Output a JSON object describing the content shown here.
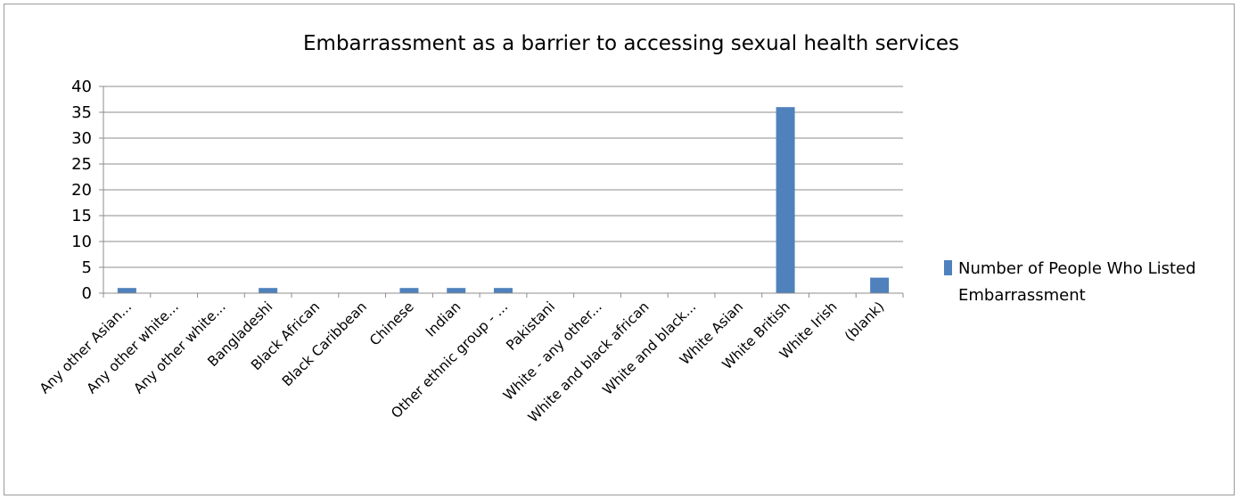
{
  "chart_data": {
    "type": "bar",
    "title": "Embarrassment as a barrier to accessing sexual health services",
    "xlabel": "",
    "ylabel": "",
    "ylim": [
      0,
      40
    ],
    "yticks": [
      0,
      5,
      10,
      15,
      20,
      25,
      30,
      35,
      40
    ],
    "grid": true,
    "legend_position": "right",
    "categories": [
      "Any other Asian...",
      "Any other white...",
      "Any other white...",
      "Bangladeshi",
      "Black African",
      "Black Caribbean",
      "Chinese",
      "Indian",
      "Other ethnic group - ...",
      "Pakistani",
      "White - any other...",
      "White and black african",
      "White and black...",
      "White Asian",
      "White British",
      "White Irish",
      "(blank)"
    ],
    "series": [
      {
        "name": "Number of People Who Listed Embarrassment",
        "legend_lines": [
          "Number of People Who Listed",
          "Embarrassment"
        ],
        "color": "#4F81BD",
        "values": [
          1,
          0,
          0,
          1,
          0,
          0,
          1,
          1,
          1,
          0,
          0,
          0,
          0,
          0,
          36,
          0,
          3
        ]
      }
    ]
  }
}
